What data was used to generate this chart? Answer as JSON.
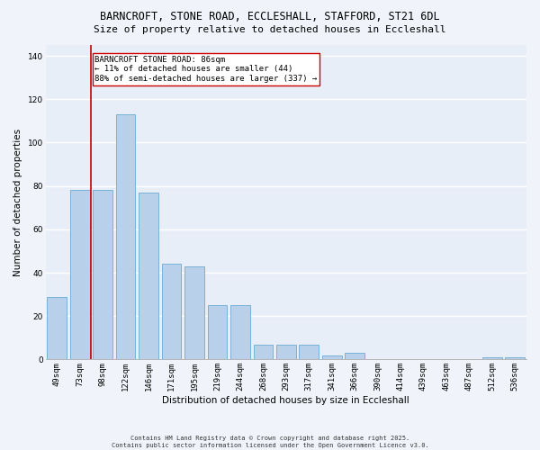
{
  "title_line1": "BARNCROFT, STONE ROAD, ECCLESHALL, STAFFORD, ST21 6DL",
  "title_line2": "Size of property relative to detached houses in Eccleshall",
  "xlabel": "Distribution of detached houses by size in Eccleshall",
  "ylabel": "Number of detached properties",
  "categories": [
    "49sqm",
    "73sqm",
    "98sqm",
    "122sqm",
    "146sqm",
    "171sqm",
    "195sqm",
    "219sqm",
    "244sqm",
    "268sqm",
    "293sqm",
    "317sqm",
    "341sqm",
    "366sqm",
    "390sqm",
    "414sqm",
    "439sqm",
    "463sqm",
    "487sqm",
    "512sqm",
    "536sqm"
  ],
  "values": [
    29,
    78,
    78,
    113,
    77,
    44,
    43,
    25,
    25,
    7,
    7,
    7,
    2,
    3,
    0,
    0,
    0,
    0,
    0,
    1,
    1
  ],
  "bar_color": "#b8d0ea",
  "bar_edge_color": "#6aaad4",
  "vline_x": 1.5,
  "vline_color": "#cc0000",
  "annotation_text": "BARNCROFT STONE ROAD: 86sqm\n← 11% of detached houses are smaller (44)\n88% of semi-detached houses are larger (337) →",
  "annotation_box_color": "#ffffff",
  "annotation_box_edge": "#cc0000",
  "ylim": [
    0,
    145
  ],
  "yticks": [
    0,
    20,
    40,
    60,
    80,
    100,
    120,
    140
  ],
  "background_color": "#e8eef8",
  "grid_color": "#ffffff",
  "footer_line1": "Contains HM Land Registry data © Crown copyright and database right 2025.",
  "footer_line2": "Contains public sector information licensed under the Open Government Licence v3.0.",
  "title_fontsize": 8.5,
  "subtitle_fontsize": 8,
  "tick_fontsize": 6.5,
  "label_fontsize": 7.5,
  "annotation_fontsize": 6.5,
  "footer_fontsize": 5
}
